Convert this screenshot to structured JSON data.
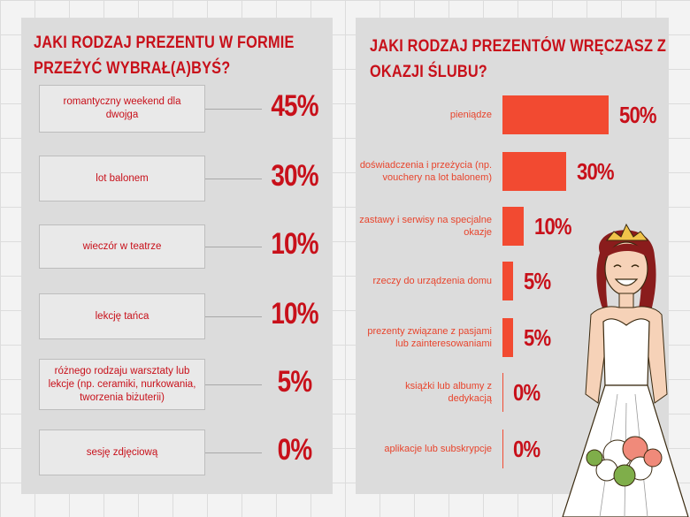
{
  "left_panel": {
    "title": "JAKI RODZAJ PREZENTU W FORMIE PRZEŻYĆ WYBRAŁ(A)BYŚ?"
  },
  "right_panel": {
    "title": "JAKI RODZAJ PREZENTÓW WRĘCZASZ Z OKAZJI ŚLUBU?"
  },
  "chart_data": [
    {
      "type": "bar",
      "title": "JAKI RODZAJ PREZENTU W FORMIE PRZEŻYĆ WYBRAŁ(A)BYŚ?",
      "categories": [
        "romantyczny weekend dla dwojga",
        "lot balonem",
        "wieczór w teatrze",
        "lekcję tańca",
        "różnego rodzaju warsztaty lub lekcje (np. ceramiki, nurkowania, tworzenia biżuterii)",
        "sesję zdjęciową"
      ],
      "values": [
        45,
        30,
        10,
        10,
        5,
        0
      ],
      "labels": [
        "45%",
        "30%",
        "10%",
        "10%",
        "5%",
        "0%"
      ],
      "unit": "%"
    },
    {
      "type": "bar",
      "title": "JAKI RODZAJ PREZENTÓW WRĘCZASZ Z OKAZJI ŚLUBU?",
      "categories": [
        "pieniądze",
        "doświadczenia i przeżycia (np. vouchery na lot balonem)",
        "zastawy i serwisy na specjalne okazje",
        "rzeczy do urządzenia domu",
        "prezenty związane z pasjami lub zainteresowaniami",
        "książki lub albumy z dedykacją",
        "aplikacje lub subskrypcje"
      ],
      "values": [
        50,
        30,
        10,
        5,
        5,
        0,
        0
      ],
      "labels": [
        "50%",
        "30%",
        "10%",
        "5%",
        "5%",
        "0%",
        "0%"
      ],
      "unit": "%",
      "orientation": "horizontal",
      "xlim": [
        0,
        50
      ]
    }
  ],
  "colors": {
    "title_red": "#c8101a",
    "bar_orange": "#f24a31",
    "panel_gray": "#dcdcdc"
  },
  "illustration": "bride-with-bouquet"
}
